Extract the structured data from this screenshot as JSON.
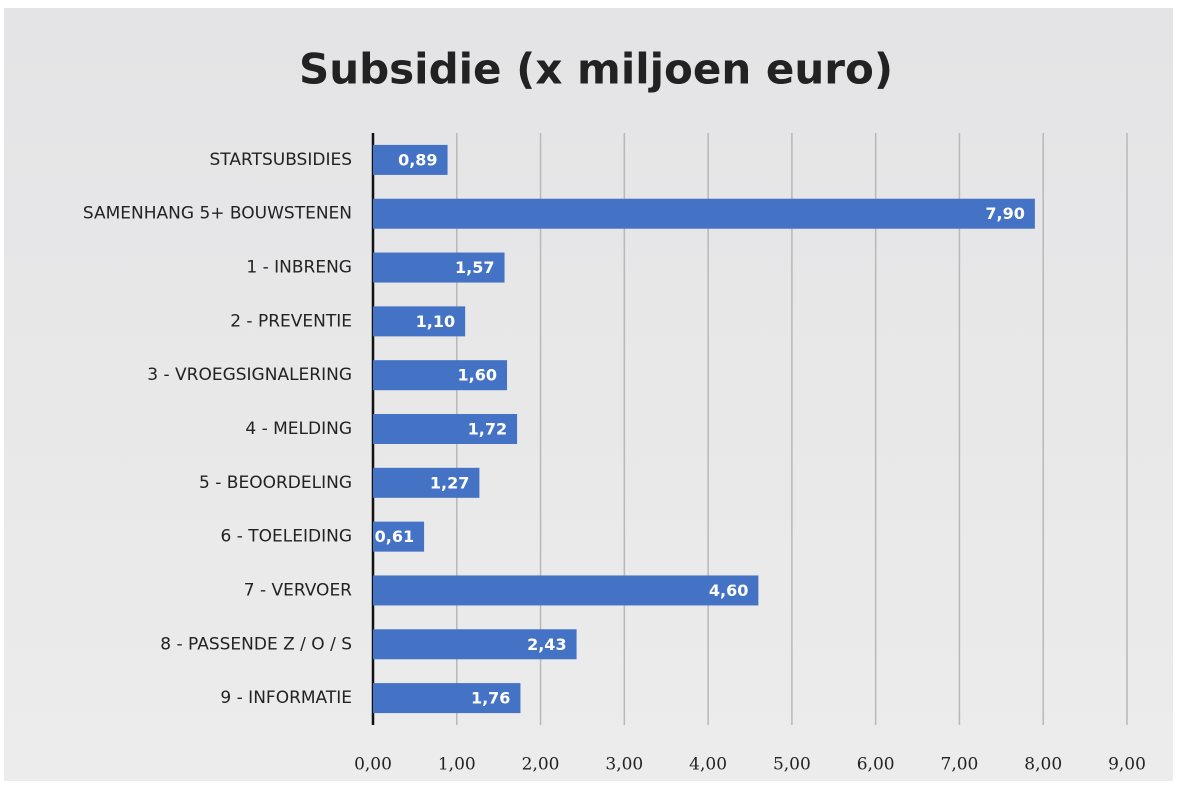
{
  "chart_data": {
    "type": "barh",
    "title": "Subsidie (x miljoen euro)",
    "categories": [
      "STARTSUBSIDIES",
      "SAMENHANG 5+ BOUWSTENEN",
      "1 - INBRENG",
      "2 - PREVENTIE",
      "3 - VROEGSIGNALERING",
      "4 - MELDING",
      "5 - BEOORDELING",
      "6 - TOELEIDING",
      "7 - VERVOER",
      "8 - PASSENDE Z / O / S",
      "9 - INFORMATIE"
    ],
    "values": [
      0.89,
      7.9,
      1.57,
      1.1,
      1.6,
      1.72,
      1.27,
      0.61,
      4.6,
      2.43,
      1.76
    ],
    "value_labels": [
      "0,89",
      "7,90",
      "1,57",
      "1,10",
      "1,60",
      "1,72",
      "1,27",
      "0,61",
      "4,60",
      "2,43",
      "1,76"
    ],
    "color": "#4472c4",
    "xlim": [
      0,
      9
    ],
    "xticks": [
      {
        "value": 0,
        "label": "0,00"
      },
      {
        "value": 1,
        "label": "1,00"
      },
      {
        "value": 2,
        "label": "2,00"
      },
      {
        "value": 3,
        "label": "3,00"
      },
      {
        "value": 4,
        "label": "4,00"
      },
      {
        "value": 5,
        "label": "5,00"
      },
      {
        "value": 6,
        "label": "6,00"
      },
      {
        "value": 7,
        "label": "7,00"
      },
      {
        "value": 8,
        "label": "8,00"
      },
      {
        "value": 9,
        "label": "9,00"
      }
    ],
    "grid": true
  }
}
